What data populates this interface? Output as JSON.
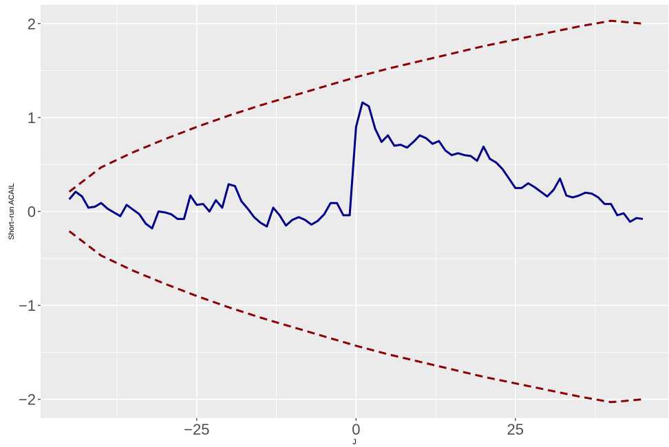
{
  "chart_data": {
    "type": "line",
    "xlabel": "J",
    "ylabel": "Short–run ACAIL",
    "xlim": [
      -49.5,
      49
    ],
    "ylim": [
      -2.2,
      2.2
    ],
    "x_ticks": [
      -25,
      0,
      25
    ],
    "x_tick_labels": [
      "−25",
      "0",
      "25"
    ],
    "y_ticks": [
      -2,
      -1,
      0,
      1,
      2
    ],
    "y_tick_labels": [
      "−2",
      "−1",
      "0",
      "1",
      "2"
    ],
    "grid": true,
    "legend": "none",
    "colors": {
      "panel": "#ebebeb",
      "grid": "#ffffff",
      "series": "#00008b",
      "bounds": "#8b0000",
      "tick_text": "#4d4d4d",
      "tick_mark": "#333333"
    },
    "series": [
      {
        "style": "solid",
        "color": "#00008b",
        "x": [
          -45,
          -44,
          -43,
          -42,
          -41,
          -40,
          -39,
          -38,
          -37,
          -36,
          -35,
          -34,
          -33,
          -32,
          -31,
          -30,
          -29,
          -28,
          -27,
          -26,
          -25,
          -24,
          -23,
          -22,
          -21,
          -20,
          -19,
          -18,
          -17,
          -16,
          -15,
          -14,
          -13,
          -12,
          -11,
          -10,
          -9,
          -8,
          -7,
          -6,
          -5,
          -4,
          -3,
          -2,
          -1,
          0,
          1,
          2,
          3,
          4,
          5,
          6,
          7,
          8,
          9,
          10,
          11,
          12,
          13,
          14,
          15,
          16,
          17,
          18,
          19,
          20,
          21,
          22,
          23,
          24,
          25,
          26,
          27,
          28,
          29,
          30,
          31,
          32,
          33,
          34,
          35,
          36,
          37,
          38,
          39,
          40,
          41,
          42,
          43,
          44,
          45
        ],
        "y": [
          0.13,
          0.21,
          0.16,
          0.04,
          0.05,
          0.09,
          0.03,
          -0.01,
          -0.05,
          0.07,
          0.02,
          -0.03,
          -0.13,
          -0.18,
          0.0,
          -0.01,
          -0.03,
          -0.08,
          -0.08,
          0.17,
          0.07,
          0.08,
          0.0,
          0.12,
          0.04,
          0.29,
          0.27,
          0.11,
          0.03,
          -0.06,
          -0.12,
          -0.16,
          0.04,
          -0.04,
          -0.15,
          -0.09,
          -0.06,
          -0.09,
          -0.14,
          -0.1,
          -0.03,
          0.09,
          0.09,
          -0.04,
          -0.04,
          0.9,
          1.16,
          1.12,
          0.88,
          0.74,
          0.81,
          0.7,
          0.71,
          0.68,
          0.74,
          0.81,
          0.78,
          0.72,
          0.75,
          0.65,
          0.6,
          0.62,
          0.6,
          0.59,
          0.54,
          0.69,
          0.56,
          0.52,
          0.45,
          0.35,
          0.25,
          0.25,
          0.3,
          0.26,
          0.21,
          0.16,
          0.23,
          0.35,
          0.17,
          0.15,
          0.17,
          0.2,
          0.19,
          0.15,
          0.08,
          0.08,
          -0.04,
          -0.02,
          -0.11,
          -0.07,
          -0.08
        ]
      },
      {
        "style": "dashed",
        "color": "#8b0000",
        "x": [
          -45,
          -40,
          -35,
          -30,
          -25,
          -20,
          -15,
          -10,
          -5,
          0,
          5,
          10,
          15,
          20,
          25,
          30,
          35,
          40,
          45
        ],
        "y": [
          0.21,
          0.47,
          0.63,
          0.77,
          0.9,
          1.02,
          1.13,
          1.23,
          1.33,
          1.43,
          1.52,
          1.6,
          1.68,
          1.76,
          1.83,
          1.9,
          1.97,
          2.03,
          2.0
        ]
      },
      {
        "style": "dashed",
        "color": "#8b0000",
        "x": [
          -45,
          -40,
          -35,
          -30,
          -25,
          -20,
          -15,
          -10,
          -5,
          0,
          5,
          10,
          15,
          20,
          25,
          30,
          35,
          40,
          45
        ],
        "y": [
          -0.21,
          -0.47,
          -0.63,
          -0.77,
          -0.9,
          -1.02,
          -1.13,
          -1.23,
          -1.33,
          -1.43,
          -1.52,
          -1.6,
          -1.68,
          -1.76,
          -1.83,
          -1.9,
          -1.97,
          -2.03,
          -2.0
        ]
      }
    ]
  }
}
